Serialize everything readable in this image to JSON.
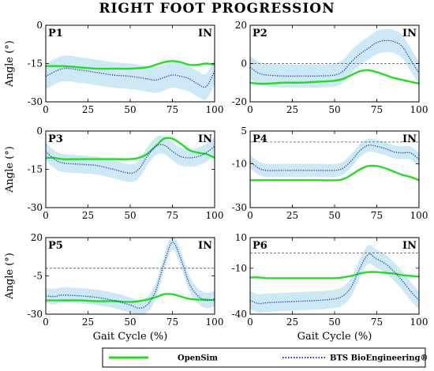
{
  "chart_data": {
    "title": "RIGHT FOOT PROGRESSION",
    "xlabel": "Gait Cycle (%)",
    "ylabel": "Angle (°)",
    "legend": [
      {
        "label": "OpenSim",
        "color": "#22dd22",
        "style": "solid"
      },
      {
        "label": "BTS BioEngineering®",
        "color": "#1f2fbf",
        "style": "dotted"
      }
    ],
    "band_color": "#cce9f5",
    "zero_line": "dashed",
    "panels": [
      {
        "label": "P1",
        "corner": "IN",
        "type": "line",
        "xlim": [
          0,
          100
        ],
        "ylim": [
          -30,
          0
        ],
        "yticks": [
          0,
          -15,
          -30
        ],
        "xticks": [
          0,
          25,
          50,
          75,
          100
        ],
        "x": [
          0,
          10,
          20,
          30,
          40,
          50,
          60,
          65,
          70,
          75,
          80,
          85,
          90,
          95,
          100
        ],
        "series": [
          {
            "name": "OpenSim",
            "values": [
              -16,
              -16,
              -16.5,
              -17,
              -17,
              -17,
              -16.5,
              -15.5,
              -14.5,
              -14,
              -14.5,
              -15.5,
              -15.5,
              -15,
              -15.5
            ]
          },
          {
            "name": "BTS BioEngineering®",
            "values": [
              -20,
              -17,
              -17.5,
              -18.5,
              -19.5,
              -20,
              -21,
              -21.5,
              -20.5,
              -19.5,
              -20,
              -21,
              -23,
              -24,
              -18
            ]
          }
        ],
        "band_halfwidth": 5
      },
      {
        "label": "P2",
        "corner": "IN",
        "type": "line",
        "xlim": [
          0,
          100
        ],
        "ylim": [
          -20,
          20
        ],
        "yticks": [
          20,
          0,
          -20
        ],
        "xticks": [
          0,
          25,
          50,
          75,
          100
        ],
        "x": [
          0,
          5,
          10,
          20,
          30,
          40,
          50,
          55,
          60,
          65,
          70,
          75,
          80,
          85,
          90,
          95,
          100
        ],
        "series": [
          {
            "name": "OpenSim",
            "values": [
              -10,
              -10.5,
              -10.5,
              -10,
              -10,
              -9.5,
              -9,
              -8,
              -6,
              -4,
              -3.5,
              -4.5,
              -6,
              -7.5,
              -8.5,
              -9.5,
              -10.5
            ]
          },
          {
            "name": "BTS BioEngineering®",
            "values": [
              -2,
              -5,
              -6,
              -6.5,
              -6.5,
              -6.5,
              -6,
              -4,
              1,
              5,
              8,
              11,
              12,
              11.5,
              9,
              2,
              -5
            ]
          }
        ],
        "band_halfwidth": 6
      },
      {
        "label": "P3",
        "corner": "IN",
        "type": "line",
        "xlim": [
          0,
          100
        ],
        "ylim": [
          -30,
          0
        ],
        "yticks": [
          0,
          -15,
          -30
        ],
        "xticks": [
          0,
          25,
          50,
          75,
          100
        ],
        "x": [
          0,
          5,
          10,
          20,
          30,
          40,
          50,
          55,
          60,
          65,
          70,
          75,
          80,
          85,
          90,
          95,
          100
        ],
        "series": [
          {
            "name": "OpenSim",
            "values": [
              -10.5,
              -10.5,
              -11,
              -11,
              -11,
              -11,
              -11,
              -10.5,
              -9,
              -6,
              -3,
              -3,
              -5,
              -7.5,
              -8.5,
              -9,
              -10.5
            ]
          },
          {
            "name": "BTS BioEngineering®",
            "values": [
              -8,
              -11,
              -12.5,
              -13,
              -13.5,
              -15,
              -16.5,
              -15,
              -10,
              -6,
              -5.5,
              -8,
              -10,
              -10.5,
              -10,
              -8.5,
              -6
            ]
          }
        ],
        "band_halfwidth": 3.5
      },
      {
        "label": "P4",
        "corner": "IN",
        "type": "line",
        "xlim": [
          0,
          100
        ],
        "ylim": [
          -30,
          5
        ],
        "yticks": [
          5,
          -10,
          -30
        ],
        "xticks": [
          0,
          25,
          50,
          75,
          100
        ],
        "x": [
          0,
          5,
          10,
          20,
          30,
          40,
          50,
          55,
          60,
          65,
          70,
          75,
          80,
          85,
          90,
          95,
          100
        ],
        "series": [
          {
            "name": "OpenSim",
            "values": [
              -17.5,
              -17.5,
              -17.5,
              -17.5,
              -17.5,
              -17.5,
              -17.5,
              -17,
              -15,
              -12.5,
              -11,
              -11,
              -12,
              -13.5,
              -15,
              -16,
              -17.5
            ]
          },
          {
            "name": "BTS BioEngineering®",
            "values": [
              -9,
              -12,
              -13,
              -13,
              -13,
              -13,
              -13,
              -12,
              -8.5,
              -4,
              -1.5,
              -2,
              -3,
              -4.5,
              -5,
              -5,
              -8
            ]
          }
        ],
        "band_halfwidth": 3
      },
      {
        "label": "P5",
        "corner": "IN",
        "type": "line",
        "xlim": [
          0,
          100
        ],
        "ylim": [
          -30,
          20
        ],
        "yticks": [
          20,
          -5,
          -30
        ],
        "xticks": [
          0,
          25,
          50,
          75,
          100
        ],
        "x": [
          0,
          5,
          10,
          20,
          30,
          40,
          50,
          55,
          60,
          65,
          70,
          75,
          80,
          85,
          90,
          95,
          100
        ],
        "series": [
          {
            "name": "OpenSim",
            "values": [
              -21,
              -21,
              -21,
              -21,
              -21.5,
              -21.5,
              -22,
              -21.5,
              -20.5,
              -19,
              -17,
              -17,
              -18.5,
              -20,
              -20.5,
              -20.5,
              -21
            ]
          },
          {
            "name": "BTS BioEngineering®",
            "values": [
              -18,
              -18.5,
              -17.5,
              -18,
              -19,
              -21,
              -24,
              -26,
              -24,
              -15,
              3,
              17,
              6,
              -10,
              -18,
              -21,
              -20
            ]
          }
        ],
        "band_halfwidth": 5
      },
      {
        "label": "P6",
        "corner": "IN",
        "type": "line",
        "xlim": [
          0,
          100
        ],
        "ylim": [
          -40,
          10
        ],
        "yticks": [
          10,
          -10,
          -40
        ],
        "xticks": [
          0,
          25,
          50,
          75,
          100
        ],
        "x": [
          0,
          5,
          10,
          20,
          30,
          40,
          50,
          55,
          60,
          65,
          70,
          75,
          80,
          85,
          90,
          95,
          100
        ],
        "series": [
          {
            "name": "OpenSim",
            "values": [
              -16,
              -16,
              -16.5,
              -16.5,
              -16.5,
              -16.5,
              -16.5,
              -16,
              -15,
              -13.5,
              -12.5,
              -12.5,
              -13,
              -13.5,
              -14.5,
              -15,
              -15.5
            ]
          },
          {
            "name": "BTS BioEngineering®",
            "values": [
              -31,
              -33,
              -32.5,
              -32,
              -31.5,
              -31,
              -30,
              -28,
              -22,
              -10,
              -1,
              -4,
              -7,
              -12,
              -18,
              -25,
              -31
            ]
          }
        ],
        "band_halfwidth": 6
      }
    ]
  }
}
